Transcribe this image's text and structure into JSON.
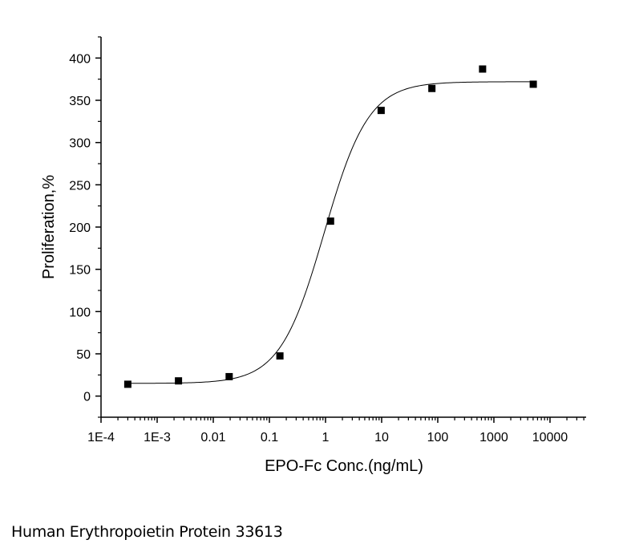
{
  "chart_data": {
    "type": "scatter",
    "xlabel": "EPO-Fc Conc.(ng/mL)",
    "ylabel": "Proliferation,%",
    "x_scale": "log",
    "xlim": [
      0.0001,
      44000
    ],
    "ylim": [
      -25,
      425
    ],
    "x_ticks": [
      0.0001,
      0.001,
      0.01,
      0.1,
      1,
      10,
      100,
      1000,
      10000
    ],
    "x_tick_labels": [
      "1E-4",
      "1E-3",
      "0.01",
      "0.1",
      "1",
      "10",
      "100",
      "1000",
      "10000"
    ],
    "y_ticks": [
      0,
      50,
      100,
      150,
      200,
      250,
      300,
      350,
      400
    ],
    "y_tick_labels": [
      "0",
      "50",
      "100",
      "150",
      "200",
      "250",
      "300",
      "350",
      "400"
    ],
    "grid": false,
    "series": [
      {
        "marker": "square",
        "color": "#000000",
        "x": [
          0.0003,
          0.0024,
          0.0192,
          0.154,
          1.23,
          9.8,
          78.6,
          629,
          5033
        ],
        "y": [
          14,
          18,
          23,
          47.5,
          207,
          338,
          364,
          387,
          369
        ]
      }
    ],
    "fit": {
      "type": "4PL",
      "bottom": 15,
      "top": 372,
      "ec50": 0.95,
      "hill": 1.1,
      "color": "#000000"
    }
  },
  "caption": "Human Erythropoietin Protein 33613"
}
